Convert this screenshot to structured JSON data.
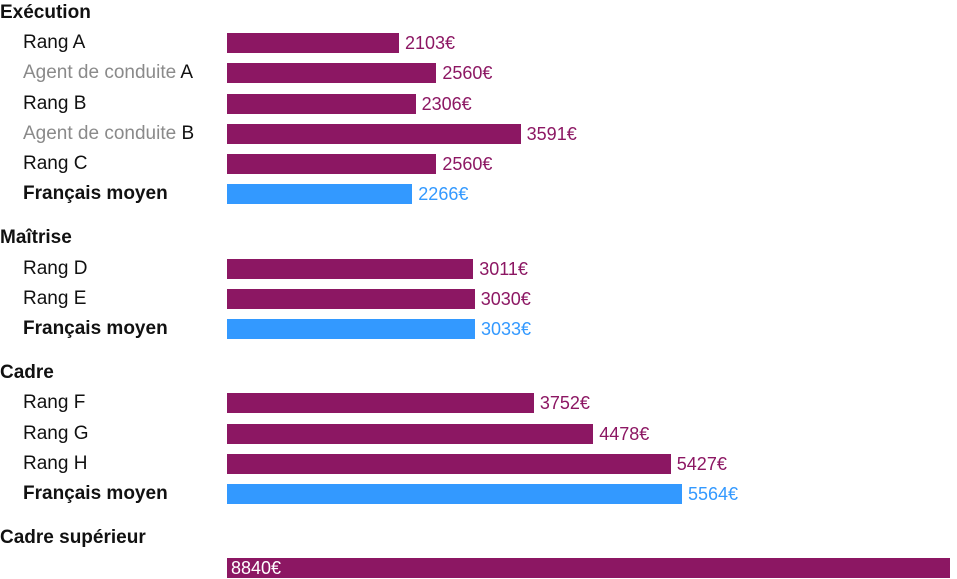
{
  "chart_data": {
    "type": "bar",
    "orientation": "horizontal",
    "unit": "€",
    "colors": {
      "rank": "#8c1763",
      "average": "#3399ff"
    },
    "xlim": [
      0,
      11000
    ],
    "groups": [
      {
        "title": "Exécution",
        "rows": [
          {
            "label": "Rang A",
            "value": 2103,
            "value_label": "2103€",
            "kind": "rank"
          },
          {
            "prefix": "Agent de conduite",
            "label": "A",
            "value": 2560,
            "value_label": "2560€",
            "kind": "rank"
          },
          {
            "label": "Rang B",
            "value": 2306,
            "value_label": "2306€",
            "kind": "rank"
          },
          {
            "prefix": "Agent de conduite",
            "label": "B",
            "value": 3591,
            "value_label": "3591€",
            "kind": "rank"
          },
          {
            "label": "Rang C",
            "value": 2560,
            "value_label": "2560€",
            "kind": "rank"
          },
          {
            "label": "Français moyen",
            "value": 2266,
            "value_label": "2266€",
            "kind": "average"
          }
        ]
      },
      {
        "title": "Maîtrise",
        "rows": [
          {
            "label": "Rang D",
            "value": 3011,
            "value_label": "3011€",
            "kind": "rank"
          },
          {
            "label": "Rang E",
            "value": 3030,
            "value_label": "3030€",
            "kind": "rank"
          },
          {
            "label": "Français moyen",
            "value": 3033,
            "value_label": "3033€",
            "kind": "average"
          }
        ]
      },
      {
        "title": "Cadre",
        "rows": [
          {
            "label": "Rang F",
            "value": 3752,
            "value_label": "3752€",
            "kind": "rank"
          },
          {
            "label": "Rang G",
            "value": 4478,
            "value_label": "4478€",
            "kind": "rank"
          },
          {
            "label": "Rang H",
            "value": 5427,
            "value_label": "5427€",
            "kind": "rank"
          },
          {
            "label": "Français moyen",
            "value": 5564,
            "value_label": "5564€",
            "kind": "average"
          }
        ]
      },
      {
        "title": "Cadre supérieur",
        "rows": [
          {
            "label": "",
            "value": 8840,
            "value_label": "8840€",
            "kind": "rank",
            "label_inside": true
          }
        ]
      }
    ]
  }
}
